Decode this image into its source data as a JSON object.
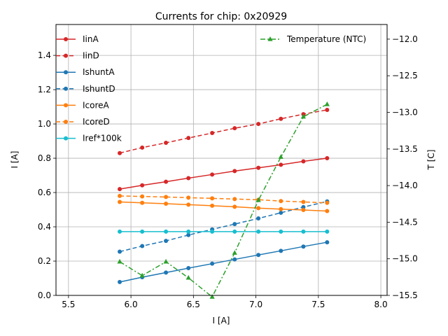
{
  "chart_data": {
    "type": "line",
    "title": "Currents for chip: 0x20929",
    "xlabel": "I [A]",
    "ylabel": "I [A]",
    "y2label": "T [C]",
    "xlim": [
      5.4,
      8.05
    ],
    "ylim": [
      0,
      1.58
    ],
    "y2lim": [
      -15.5,
      -11.8
    ],
    "xticks": [
      "5.5",
      "6.0",
      "6.5",
      "7.0",
      "7.5",
      "8.0"
    ],
    "yticks": [
      "0.0",
      "0.2",
      "0.4",
      "0.6",
      "0.8",
      "1.0",
      "1.2",
      "1.4"
    ],
    "y2ticks": [
      "−15.5",
      "−15.0",
      "−14.5",
      "−14.0",
      "−13.5",
      "−13.0",
      "−12.5",
      "−12.0"
    ],
    "grid": true,
    "legend_position": "top-left",
    "legend2_position": "top-right",
    "x": [
      5.91,
      6.09,
      6.28,
      6.46,
      6.65,
      6.83,
      7.02,
      7.2,
      7.38,
      7.57
    ],
    "series": [
      {
        "name": "IinA",
        "color": "#d62728",
        "dash": "solid",
        "marker": "circle",
        "axis": "left",
        "values": [
          0.62,
          0.642,
          0.663,
          0.684,
          0.705,
          0.725,
          0.744,
          0.762,
          0.782,
          0.8
        ]
      },
      {
        "name": "IinD",
        "color": "#d62728",
        "dash": "dashed",
        "marker": "circle",
        "axis": "left",
        "values": [
          0.83,
          0.862,
          0.89,
          0.918,
          0.947,
          0.975,
          1.0,
          1.03,
          1.057,
          1.082
        ]
      },
      {
        "name": "IshuntA",
        "color": "#1f77b4",
        "dash": "solid",
        "marker": "circle",
        "axis": "left",
        "values": [
          0.078,
          0.106,
          0.133,
          0.159,
          0.185,
          0.21,
          0.236,
          0.26,
          0.285,
          0.31
        ]
      },
      {
        "name": "IshuntD",
        "color": "#1f77b4",
        "dash": "dashed",
        "marker": "circle",
        "axis": "left",
        "values": [
          0.255,
          0.288,
          0.318,
          0.352,
          0.385,
          0.416,
          0.449,
          0.482,
          0.515,
          0.548
        ]
      },
      {
        "name": "IcoreA",
        "color": "#ff7f0e",
        "dash": "solid",
        "marker": "circle",
        "axis": "left",
        "values": [
          0.545,
          0.54,
          0.535,
          0.529,
          0.523,
          0.517,
          0.509,
          0.503,
          0.498,
          0.492
        ]
      },
      {
        "name": "IcoreD",
        "color": "#ff7f0e",
        "dash": "dashed",
        "marker": "circle",
        "axis": "left",
        "values": [
          0.58,
          0.577,
          0.574,
          0.57,
          0.566,
          0.562,
          0.558,
          0.55,
          0.545,
          0.54
        ]
      },
      {
        "name": "Iref*100k",
        "color": "#17becf",
        "dash": "solid",
        "marker": "circle",
        "axis": "left",
        "values": [
          0.372,
          0.372,
          0.372,
          0.372,
          0.372,
          0.372,
          0.372,
          0.372,
          0.372,
          0.372
        ]
      },
      {
        "name": "Temperature (NTC)",
        "color": "#2ca02c",
        "dash": "dashdot",
        "marker": "triangle",
        "axis": "right",
        "values": [
          -15.04,
          -15.23,
          -15.04,
          -15.26,
          -15.52,
          -14.92,
          -14.2,
          -13.61,
          -13.06,
          -12.89
        ]
      }
    ]
  }
}
